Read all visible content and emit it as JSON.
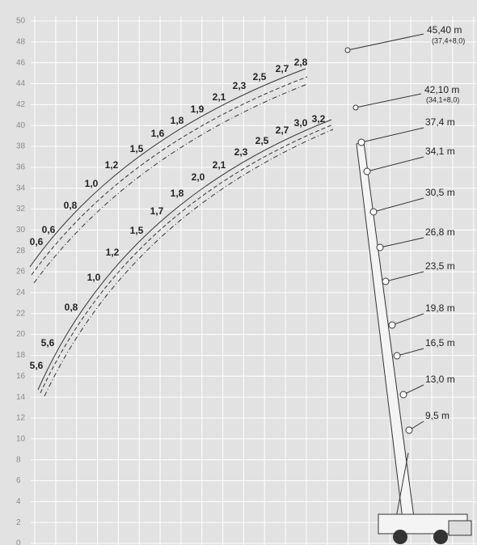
{
  "y_axis": {
    "ticks": [
      "0",
      "2",
      "4",
      "6",
      "8",
      "10",
      "12",
      "14",
      "16",
      "18",
      "20",
      "22",
      "24",
      "26",
      "28",
      "30",
      "32",
      "34",
      "36",
      "38",
      "40",
      "42",
      "44",
      "46",
      "48",
      "50"
    ]
  },
  "jib_curves": [
    {
      "boom_label": "45,40 m",
      "boom_detail": "(37,4+8,0)",
      "loads": [
        "0,6",
        "0,6",
        "0,8",
        "1,0",
        "1,2",
        "1,5",
        "1,6",
        "1,8",
        "1,9",
        "2,1",
        "2,3",
        "2,5",
        "2,7",
        "2,8"
      ]
    },
    {
      "boom_label": "42,10 m",
      "boom_detail": "(34,1+8,0)",
      "loads": [
        "5,6",
        "5,6",
        "0,8",
        "1,0",
        "1,2",
        "1,5",
        "1,7",
        "1,8",
        "2,0",
        "2,1",
        "2,3",
        "2,5",
        "2,7",
        "3,0",
        "3,2"
      ]
    }
  ],
  "boom_lengths": [
    "37,4 m",
    "34,1 m",
    "30,5 m",
    "26,8 m",
    "23,5 m",
    "19,8 m",
    "16,5 m",
    "13,0 m",
    "9,5 m"
  ]
}
